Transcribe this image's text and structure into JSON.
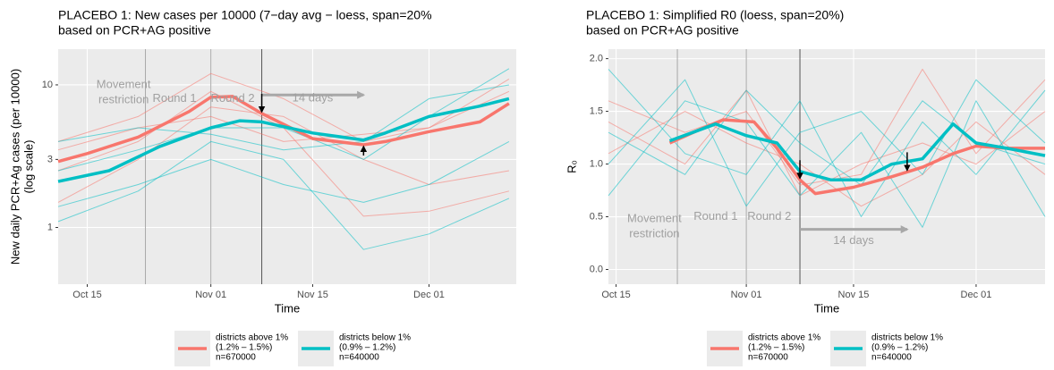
{
  "chart_data": [
    {
      "type": "line",
      "title": [
        "PLACEBO 1: New cases per 10000 (7−day avg − loess, span=20%",
        "based on PCR+AG positive"
      ],
      "x_label": "Time",
      "y_label": [
        "New daily PCR+Ag cases (per 10000)",
        "(log scale)"
      ],
      "log_y": true,
      "grid": true,
      "xlim": [
        "Oct 11",
        "Dec 13"
      ],
      "xticks": [
        "Oct 15",
        "Nov 01",
        "Nov 15",
        "Dec 01"
      ],
      "ylim": [
        0.4,
        17.8
      ],
      "yticks": [
        1,
        3,
        10
      ],
      "vlines": [
        "Oct 23",
        "Nov 01",
        "Nov 08"
      ],
      "annotations": [
        {
          "x": "Oct 20",
          "lines": [
            "Movement",
            "restriction"
          ],
          "y": 10
        },
        {
          "x": "Oct 27",
          "lines": [
            "Round 1"
          ],
          "y": 8
        },
        {
          "x": "Nov 04",
          "lines": [
            "Round 2"
          ],
          "y": 8
        }
      ],
      "arrow": {
        "from": "Nov 08",
        "to": "Nov 22",
        "y": 8.5,
        "label": "14 days"
      },
      "event_arrows": [
        {
          "x": "Nov 08",
          "dir": "down"
        },
        {
          "x": "Nov 22",
          "dir": "up"
        }
      ],
      "series": [
        {
          "name": [
            "districts above 1%",
            "(1.2% – 1.5%)",
            "n=670000"
          ],
          "color": "#F8766D",
          "x": [
            "Oct 11",
            "Oct 15",
            "Oct 22",
            "Oct 29",
            "Nov 01",
            "Nov 04",
            "Nov 08",
            "Nov 15",
            "Nov 22",
            "Nov 25",
            "Dec 01",
            "Dec 08",
            "Dec 12"
          ],
          "values": [
            2.9,
            3.3,
            4.3,
            6.5,
            8.2,
            8.3,
            6.3,
            4.2,
            3.8,
            4.0,
            4.7,
            5.5,
            7.4
          ]
        },
        {
          "name": [
            "districts below 1%",
            "(0.9% – 1.2%)",
            "n=640000"
          ],
          "color": "#00BFC4",
          "x": [
            "Oct 11",
            "Oct 18",
            "Oct 25",
            "Nov 01",
            "Nov 05",
            "Nov 08",
            "Nov 15",
            "Nov 22",
            "Nov 25",
            "Dec 01",
            "Dec 08",
            "Dec 12"
          ],
          "values": [
            2.1,
            2.5,
            3.7,
            5.0,
            5.6,
            5.5,
            4.6,
            4.1,
            4.6,
            6.0,
            7.1,
            8.0
          ]
        }
      ],
      "district_x": [
        "Oct 11",
        "Oct 22",
        "Nov 01",
        "Nov 11",
        "Nov 22",
        "Dec 01",
        "Dec 12"
      ],
      "district_lines": [
        {
          "color": "#F8766D",
          "values": [
            1.5,
            3,
            7,
            6,
            3,
            2,
            2.5
          ]
        },
        {
          "color": "#F8766D",
          "values": [
            4,
            6,
            12,
            8,
            4,
            5,
            9
          ]
        },
        {
          "color": "#F8766D",
          "values": [
            2.5,
            4,
            9,
            5,
            1.2,
            1.3,
            1.8
          ]
        },
        {
          "color": "#F8766D",
          "values": [
            3.5,
            5,
            6,
            4,
            4.5,
            5,
            11
          ]
        },
        {
          "color": "#00BFC4",
          "values": [
            1.1,
            1.8,
            4,
            3,
            0.7,
            0.9,
            1.6
          ]
        },
        {
          "color": "#00BFC4",
          "values": [
            2.5,
            3.5,
            5,
            5,
            3,
            6,
            13
          ]
        },
        {
          "color": "#00BFC4",
          "values": [
            4,
            5,
            4.5,
            3.5,
            4,
            8,
            10
          ]
        },
        {
          "color": "#00BFC4",
          "values": [
            1.4,
            2,
            3,
            2,
            1.5,
            2,
            4
          ]
        }
      ]
    },
    {
      "type": "line",
      "title": [
        "PLACEBO 1: Simplified R0 (loess, span=20%)",
        "based on PCR+AG positive"
      ],
      "x_label": "Time",
      "y_label": [
        "R₀"
      ],
      "log_y": false,
      "grid": true,
      "xlim": [
        "Oct 14",
        "Dec 10"
      ],
      "xticks": [
        "Oct 15",
        "Nov 01",
        "Nov 15",
        "Dec 01"
      ],
      "ylim": [
        -0.14,
        2.09
      ],
      "yticks": [
        {
          "value": 0,
          "label": "0.0"
        },
        {
          "value": 0.5,
          "label": "0.5"
        },
        {
          "value": 1,
          "label": "1.0"
        },
        {
          "value": 1.5,
          "label": "1.5"
        },
        {
          "value": 2,
          "label": "2.0"
        }
      ],
      "vlines": [
        "Oct 23",
        "Nov 01",
        "Nov 08"
      ],
      "annotations": [
        {
          "x": "Oct 20",
          "lines": [
            "Movement",
            "restriction"
          ],
          "y": 0.48
        },
        {
          "x": "Oct 28",
          "lines": [
            "Round 1"
          ],
          "y": 0.5
        },
        {
          "x": "Nov 04",
          "lines": [
            "Round 2"
          ],
          "y": 0.5
        }
      ],
      "arrow": {
        "from": "Nov 08",
        "to": "Nov 22",
        "y": 0.38,
        "label": "14 days"
      },
      "event_arrows": [
        {
          "x": "Nov 08",
          "dir": "down"
        },
        {
          "x": "Nov 22",
          "dir": "down"
        }
      ],
      "series": [
        {
          "name": [
            "districts above 1%",
            "(1.2% – 1.5%)",
            "n=670000"
          ],
          "color": "#F8766D",
          "x": [
            "Oct 22",
            "Oct 26",
            "Oct 29",
            "Nov 02",
            "Nov 05",
            "Nov 08",
            "Nov 10",
            "Nov 15",
            "Nov 20",
            "Nov 24",
            "Nov 28",
            "Dec 01",
            "Dec 05",
            "Dec 10"
          ],
          "values": [
            1.2,
            1.33,
            1.42,
            1.4,
            1.15,
            0.85,
            0.72,
            0.78,
            0.88,
            0.97,
            1.1,
            1.17,
            1.15,
            1.15
          ]
        },
        {
          "name": [
            "districts below 1%",
            "(0.9% – 1.2%)",
            "n=640000"
          ],
          "color": "#00BFC4",
          "x": [
            "Oct 22",
            "Oct 25",
            "Oct 28",
            "Nov 01",
            "Nov 05",
            "Nov 08",
            "Nov 12",
            "Nov 16",
            "Nov 20",
            "Nov 24",
            "Nov 28",
            "Dec 01",
            "Dec 05",
            "Dec 10"
          ],
          "values": [
            1.22,
            1.3,
            1.38,
            1.27,
            1.2,
            0.93,
            0.85,
            0.85,
            1.0,
            1.05,
            1.38,
            1.2,
            1.15,
            1.08
          ]
        }
      ],
      "district_x": [
        "Oct 14",
        "Oct 24",
        "Nov 01",
        "Nov 08",
        "Nov 16",
        "Nov 24",
        "Dec 01",
        "Dec 10"
      ],
      "district_lines": [
        {
          "color": "#F8766D",
          "values": [
            1.6,
            1.3,
            1.5,
            0.8,
            0.9,
            1.9,
            1.1,
            1.8
          ]
        },
        {
          "color": "#F8766D",
          "values": [
            1.1,
            1.5,
            1.2,
            1.0,
            0.6,
            0.9,
            1.4,
            0.9
          ]
        },
        {
          "color": "#F8766D",
          "values": [
            1.4,
            1.0,
            1.7,
            0.7,
            1.0,
            1.2,
            1.0,
            1.5
          ]
        },
        {
          "color": "#00BFC4",
          "values": [
            1.9,
            1.1,
            0.9,
            1.6,
            0.5,
            1.4,
            0.9,
            1.7
          ]
        },
        {
          "color": "#00BFC4",
          "values": [
            0.7,
            1.6,
            1.4,
            0.7,
            1.3,
            0.4,
            1.6,
            0.5
          ]
        },
        {
          "color": "#00BFC4",
          "values": [
            1.3,
            0.9,
            1.7,
            1.2,
            0.8,
            1.6,
            1.2,
            1.0
          ]
        },
        {
          "color": "#00BFC4",
          "values": [
            1.0,
            1.8,
            0.6,
            1.3,
            1.5,
            0.9,
            1.8,
            1.2
          ]
        }
      ]
    }
  ]
}
